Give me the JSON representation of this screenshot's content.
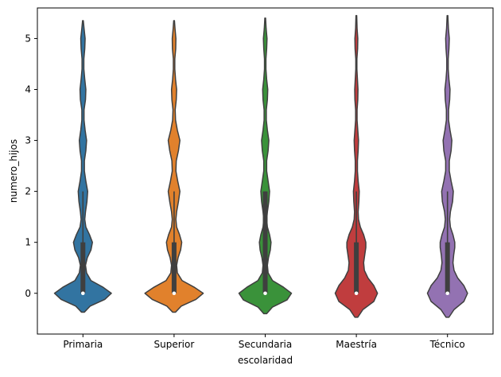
{
  "chart_data": {
    "type": "violin",
    "title": "",
    "xlabel": "escolaridad",
    "ylabel": "numero_hijos",
    "categories": [
      "Primaria",
      "Superior",
      "Secundaria",
      "Maestría",
      "Técnico"
    ],
    "colors": [
      "#3274a1",
      "#e1812c",
      "#3a923a",
      "#c03d3e",
      "#9372b2"
    ],
    "ylim": [
      -0.8,
      5.6
    ],
    "yticks": [
      0,
      1,
      2,
      3,
      4,
      5
    ],
    "grid": false,
    "legend": "none",
    "series": [
      {
        "category": "Primaria",
        "color": "#3274a1",
        "median": 0,
        "q1": 0,
        "q3": 1,
        "whisker_low": 0,
        "whisker_high": 2,
        "data_min": -0.37,
        "data_max": 5.35,
        "density": [
          [
            -0.37,
            0.04
          ],
          [
            -0.25,
            0.2
          ],
          [
            -0.12,
            0.6
          ],
          [
            0.0,
            0.78
          ],
          [
            0.12,
            0.55
          ],
          [
            0.25,
            0.22
          ],
          [
            0.4,
            0.1
          ],
          [
            0.55,
            0.07
          ],
          [
            0.7,
            0.12
          ],
          [
            0.85,
            0.22
          ],
          [
            1.0,
            0.26
          ],
          [
            1.15,
            0.18
          ],
          [
            1.3,
            0.08
          ],
          [
            1.45,
            0.05
          ],
          [
            1.6,
            0.07
          ],
          [
            1.8,
            0.11
          ],
          [
            2.0,
            0.13
          ],
          [
            2.2,
            0.08
          ],
          [
            2.4,
            0.04
          ],
          [
            2.6,
            0.04
          ],
          [
            2.8,
            0.08
          ],
          [
            3.0,
            0.1
          ],
          [
            3.2,
            0.06
          ],
          [
            3.4,
            0.03
          ],
          [
            3.6,
            0.03
          ],
          [
            3.8,
            0.07
          ],
          [
            4.0,
            0.08
          ],
          [
            4.2,
            0.05
          ],
          [
            4.4,
            0.025
          ],
          [
            4.6,
            0.025
          ],
          [
            4.8,
            0.05
          ],
          [
            5.0,
            0.06
          ],
          [
            5.2,
            0.03
          ],
          [
            5.35,
            0.01
          ]
        ]
      },
      {
        "category": "Superior",
        "color": "#e1812c",
        "median": 0,
        "q1": 0,
        "q3": 1,
        "whisker_low": 0,
        "whisker_high": 2,
        "data_min": -0.37,
        "data_max": 5.35,
        "density": [
          [
            -0.37,
            0.04
          ],
          [
            -0.25,
            0.2
          ],
          [
            -0.12,
            0.6
          ],
          [
            0.0,
            0.8
          ],
          [
            0.12,
            0.55
          ],
          [
            0.25,
            0.22
          ],
          [
            0.4,
            0.09
          ],
          [
            0.55,
            0.07
          ],
          [
            0.7,
            0.11
          ],
          [
            0.85,
            0.18
          ],
          [
            1.0,
            0.21
          ],
          [
            1.15,
            0.15
          ],
          [
            1.3,
            0.07
          ],
          [
            1.45,
            0.05
          ],
          [
            1.6,
            0.07
          ],
          [
            1.8,
            0.12
          ],
          [
            2.0,
            0.16
          ],
          [
            2.2,
            0.1
          ],
          [
            2.4,
            0.05
          ],
          [
            2.6,
            0.06
          ],
          [
            2.8,
            0.12
          ],
          [
            3.0,
            0.16
          ],
          [
            3.2,
            0.09
          ],
          [
            3.4,
            0.04
          ],
          [
            3.6,
            0.03
          ],
          [
            3.8,
            0.06
          ],
          [
            4.0,
            0.07
          ],
          [
            4.2,
            0.04
          ],
          [
            4.4,
            0.02
          ],
          [
            4.6,
            0.02
          ],
          [
            4.8,
            0.045
          ],
          [
            5.0,
            0.05
          ],
          [
            5.2,
            0.025
          ],
          [
            5.35,
            0.01
          ]
        ]
      },
      {
        "category": "Secundaria",
        "color": "#3a923a",
        "median": 0,
        "q1": 0,
        "q3": 2,
        "whisker_low": 0,
        "whisker_high": 2,
        "data_min": -0.4,
        "data_max": 5.4,
        "density": [
          [
            -0.4,
            0.04
          ],
          [
            -0.27,
            0.2
          ],
          [
            -0.13,
            0.6
          ],
          [
            0.0,
            0.72
          ],
          [
            0.12,
            0.5
          ],
          [
            0.25,
            0.2
          ],
          [
            0.4,
            0.08
          ],
          [
            0.55,
            0.06
          ],
          [
            0.7,
            0.09
          ],
          [
            0.85,
            0.14
          ],
          [
            1.0,
            0.16
          ],
          [
            1.15,
            0.12
          ],
          [
            1.3,
            0.06
          ],
          [
            1.45,
            0.04
          ],
          [
            1.6,
            0.06
          ],
          [
            1.8,
            0.1
          ],
          [
            2.0,
            0.12
          ],
          [
            2.2,
            0.08
          ],
          [
            2.4,
            0.04
          ],
          [
            2.6,
            0.04
          ],
          [
            2.8,
            0.08
          ],
          [
            3.0,
            0.1
          ],
          [
            3.2,
            0.06
          ],
          [
            3.4,
            0.03
          ],
          [
            3.6,
            0.03
          ],
          [
            3.8,
            0.06
          ],
          [
            4.0,
            0.07
          ],
          [
            4.2,
            0.04
          ],
          [
            4.4,
            0.02
          ],
          [
            4.6,
            0.02
          ],
          [
            4.8,
            0.04
          ],
          [
            5.0,
            0.05
          ],
          [
            5.2,
            0.025
          ],
          [
            5.4,
            0.01
          ]
        ]
      },
      {
        "category": "Maestría",
        "color": "#c03d3e",
        "median": 0,
        "q1": 0,
        "q3": 1,
        "whisker_low": 0,
        "whisker_high": 2,
        "data_min": -0.47,
        "data_max": 5.45,
        "density": [
          [
            -0.47,
            0.04
          ],
          [
            -0.32,
            0.18
          ],
          [
            -0.16,
            0.48
          ],
          [
            0.0,
            0.58
          ],
          [
            0.15,
            0.48
          ],
          [
            0.3,
            0.32
          ],
          [
            0.45,
            0.22
          ],
          [
            0.6,
            0.2
          ],
          [
            0.75,
            0.23
          ],
          [
            0.9,
            0.26
          ],
          [
            1.0,
            0.26
          ],
          [
            1.15,
            0.2
          ],
          [
            1.3,
            0.11
          ],
          [
            1.45,
            0.06
          ],
          [
            1.6,
            0.05
          ],
          [
            1.8,
            0.07
          ],
          [
            2.0,
            0.08
          ],
          [
            2.2,
            0.05
          ],
          [
            2.4,
            0.03
          ],
          [
            2.6,
            0.03
          ],
          [
            2.8,
            0.05
          ],
          [
            3.0,
            0.06
          ],
          [
            3.2,
            0.04
          ],
          [
            3.4,
            0.02
          ],
          [
            3.6,
            0.02
          ],
          [
            3.8,
            0.04
          ],
          [
            4.0,
            0.045
          ],
          [
            4.2,
            0.03
          ],
          [
            4.4,
            0.015
          ],
          [
            4.6,
            0.015
          ],
          [
            4.8,
            0.035
          ],
          [
            5.0,
            0.04
          ],
          [
            5.2,
            0.02
          ],
          [
            5.45,
            0.01
          ]
        ]
      },
      {
        "category": "Técnico",
        "color": "#9372b2",
        "median": 0,
        "q1": 0,
        "q3": 1,
        "whisker_low": 0,
        "whisker_high": 2,
        "data_min": -0.47,
        "data_max": 5.45,
        "density": [
          [
            -0.47,
            0.04
          ],
          [
            -0.32,
            0.18
          ],
          [
            -0.16,
            0.45
          ],
          [
            0.0,
            0.55
          ],
          [
            0.15,
            0.45
          ],
          [
            0.3,
            0.28
          ],
          [
            0.45,
            0.18
          ],
          [
            0.6,
            0.15
          ],
          [
            0.75,
            0.17
          ],
          [
            0.9,
            0.2
          ],
          [
            1.0,
            0.2
          ],
          [
            1.15,
            0.15
          ],
          [
            1.3,
            0.08
          ],
          [
            1.45,
            0.06
          ],
          [
            1.6,
            0.08
          ],
          [
            1.8,
            0.14
          ],
          [
            2.0,
            0.16
          ],
          [
            2.2,
            0.1
          ],
          [
            2.4,
            0.05
          ],
          [
            2.6,
            0.05
          ],
          [
            2.8,
            0.1
          ],
          [
            3.0,
            0.12
          ],
          [
            3.2,
            0.07
          ],
          [
            3.4,
            0.03
          ],
          [
            3.6,
            0.03
          ],
          [
            3.8,
            0.06
          ],
          [
            4.0,
            0.07
          ],
          [
            4.2,
            0.04
          ],
          [
            4.4,
            0.02
          ],
          [
            4.6,
            0.02
          ],
          [
            4.8,
            0.04
          ],
          [
            5.0,
            0.05
          ],
          [
            5.2,
            0.025
          ],
          [
            5.45,
            0.01
          ]
        ]
      }
    ]
  }
}
